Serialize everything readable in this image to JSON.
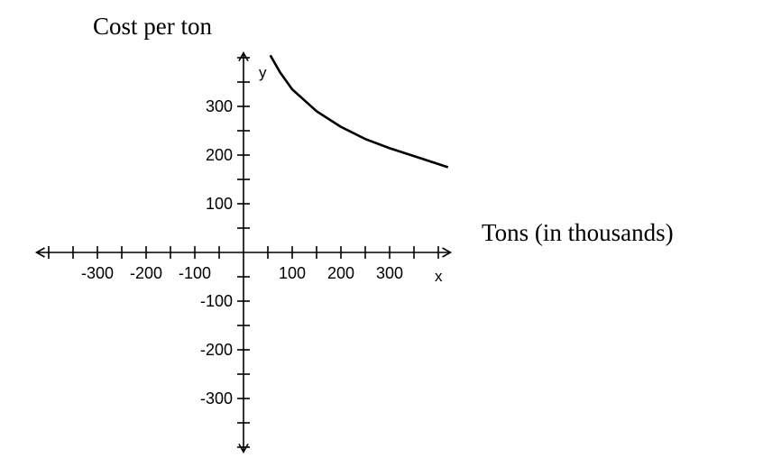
{
  "chart_data": {
    "type": "line",
    "title": "",
    "ylabel": "Cost per ton",
    "xlabel": "Tons (in thousands)",
    "x_axis_letter": "x",
    "y_axis_letter": "y",
    "xlim": [
      -425,
      425
    ],
    "ylim": [
      -410,
      410
    ],
    "tick_step": 50,
    "x_tick_labels": [
      {
        "value": -300,
        "label": "-300"
      },
      {
        "value": -200,
        "label": "-200"
      },
      {
        "value": -100,
        "label": "-100"
      },
      {
        "value": 100,
        "label": "100"
      },
      {
        "value": 200,
        "label": "200"
      },
      {
        "value": 300,
        "label": "300"
      }
    ],
    "y_tick_labels": [
      {
        "value": 300,
        "label": "300"
      },
      {
        "value": 200,
        "label": "200"
      },
      {
        "value": 100,
        "label": "100"
      },
      {
        "value": -100,
        "label": "-100"
      },
      {
        "value": -200,
        "label": "-200"
      },
      {
        "value": -300,
        "label": "-300"
      }
    ],
    "grid": false,
    "series": [
      {
        "x": [
          55,
          75,
          100,
          150,
          200,
          250,
          300,
          350,
          420
        ],
        "y": [
          405,
          370,
          335,
          290,
          258,
          233,
          214,
          198,
          175
        ]
      }
    ]
  }
}
